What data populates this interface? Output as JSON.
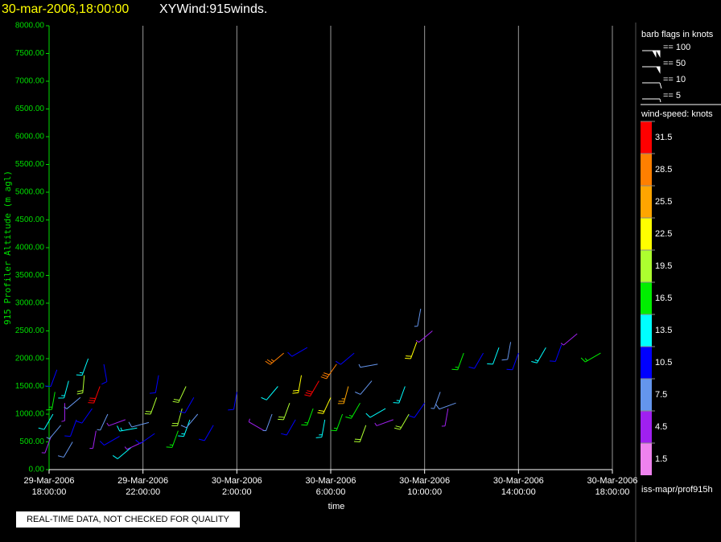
{
  "chart_data": {
    "type": "wind-barb",
    "title": "30-mar-2006,18:00:00",
    "subtitle": "XYWind:915winds.",
    "y_label": "915 Profiler Altitude (m agl)",
    "x_label": "time",
    "footer": "REAL-TIME DATA, NOT CHECKED FOR QUALITY",
    "source": "iss-mapr/prof915h",
    "xlim": [
      "2006-03-29T18:00",
      "2006-03-30T18:00"
    ],
    "xticks": [
      {
        "value": "2006-03-29T18:00",
        "label": [
          "29-Mar-2006",
          "18:00:00"
        ]
      },
      {
        "value": "2006-03-29T22:00",
        "label": [
          "29-Mar-2006",
          "22:00:00"
        ]
      },
      {
        "value": "2006-03-30T02:00",
        "label": [
          "30-Mar-2006",
          "2:00:00"
        ]
      },
      {
        "value": "2006-03-30T06:00",
        "label": [
          "30-Mar-2006",
          "6:00:00"
        ]
      },
      {
        "value": "2006-03-30T10:00",
        "label": [
          "30-Mar-2006",
          "10:00:00"
        ]
      },
      {
        "value": "2006-03-30T14:00",
        "label": [
          "30-Mar-2006",
          "14:00:00"
        ]
      },
      {
        "value": "2006-03-30T18:00",
        "label": [
          "30-Mar-2006",
          "18:00:00"
        ]
      }
    ],
    "ylim": [
      0,
      8000
    ],
    "yticks": [
      {
        "value": 0,
        "label": "0.00"
      },
      {
        "value": 500,
        "label": "500.00"
      },
      {
        "value": 1000,
        "label": "1000.00"
      },
      {
        "value": 1500,
        "label": "1500.00"
      },
      {
        "value": 2000,
        "label": "2000.00"
      },
      {
        "value": 2500,
        "label": "2500.00"
      },
      {
        "value": 3000,
        "label": "3000.00"
      },
      {
        "value": 3500,
        "label": "3500.00"
      },
      {
        "value": 4000,
        "label": "4000.00"
      },
      {
        "value": 4500,
        "label": "4500.00"
      },
      {
        "value": 5000,
        "label": "5000.00"
      },
      {
        "value": 5500,
        "label": "5500.00"
      },
      {
        "value": 6000,
        "label": "6000.00"
      },
      {
        "value": 6500,
        "label": "6500.00"
      },
      {
        "value": 7000,
        "label": "7000.00"
      },
      {
        "value": 7500,
        "label": "7500.00"
      },
      {
        "value": 8000,
        "label": "8000.00"
      }
    ],
    "grid": true,
    "flag_legend": {
      "title": "barb flags in knots",
      "items": [
        {
          "value": 100,
          "label": "== 100"
        },
        {
          "value": 50,
          "label": "== 50"
        },
        {
          "value": 10,
          "label": "== 10"
        },
        {
          "value": 5,
          "label": "== 5"
        }
      ]
    },
    "colorbar": {
      "title": "wind-speed: knots",
      "levels": [
        31.5,
        28.5,
        25.5,
        22.5,
        19.5,
        16.5,
        13.5,
        10.5,
        7.5,
        4.5,
        1.5
      ],
      "colors": [
        "#ff0000",
        "#ff7f00",
        "#ffa500",
        "#ffff00",
        "#adff2f",
        "#00ee00",
        "#00ffff",
        "#0000ff",
        "#6495ed",
        "#a020f0",
        "#ee82ee"
      ]
    },
    "barbs": {
      "x": [
        "2006-03-29T18:05",
        "2006-03-29T18:10",
        "2006-03-29T18:15",
        "2006-03-29T18:20",
        "2006-03-29T18:30",
        "2006-03-29T18:40",
        "2006-03-29T18:50",
        "2006-03-29T19:00",
        "2006-03-29T19:10",
        "2006-03-29T19:20",
        "2006-03-29T19:30",
        "2006-03-29T19:40",
        "2006-03-29T19:50",
        "2006-03-29T20:00",
        "2006-03-29T20:10",
        "2006-03-29T20:20",
        "2006-03-29T20:30",
        "2006-03-29T21:00",
        "2006-03-29T21:15",
        "2006-03-29T21:30",
        "2006-03-29T21:45",
        "2006-03-29T22:00",
        "2006-03-29T22:15",
        "2006-03-29T22:30",
        "2006-03-29T22:35",
        "2006-03-29T22:40",
        "2006-03-29T23:30",
        "2006-03-29T23:40",
        "2006-03-29T23:50",
        "2006-03-30T00:00",
        "2006-03-30T00:10",
        "2006-03-30T00:20",
        "2006-03-30T01:00",
        "2006-03-30T02:00",
        "2006-03-30T03:10",
        "2006-03-30T03:30",
        "2006-03-30T03:45",
        "2006-03-30T04:00",
        "2006-03-30T04:15",
        "2006-03-30T04:30",
        "2006-03-30T04:45",
        "2006-03-30T05:00",
        "2006-03-30T05:15",
        "2006-03-30T05:30",
        "2006-03-30T05:45",
        "2006-03-30T06:00",
        "2006-03-30T06:15",
        "2006-03-30T06:30",
        "2006-03-30T06:45",
        "2006-03-30T07:00",
        "2006-03-30T07:15",
        "2006-03-30T07:30",
        "2006-03-30T07:45",
        "2006-03-30T08:00",
        "2006-03-30T08:20",
        "2006-03-30T08:40",
        "2006-03-30T09:10",
        "2006-03-30T09:20",
        "2006-03-30T09:40",
        "2006-03-30T09:50",
        "2006-03-30T10:00",
        "2006-03-30T10:20",
        "2006-03-30T10:40",
        "2006-03-30T11:00",
        "2006-03-30T11:20",
        "2006-03-30T11:40",
        "2006-03-30T12:30",
        "2006-03-30T13:10",
        "2006-03-30T13:40",
        "2006-03-30T14:00",
        "2006-03-30T15:10",
        "2006-03-30T15:50",
        "2006-03-30T16:30",
        "2006-03-30T17:30"
      ],
      "y": [
        600,
        1000,
        1400,
        1800,
        800,
        1200,
        1600,
        500,
        900,
        1300,
        1700,
        2000,
        1100,
        700,
        1500,
        1900,
        1000,
        600,
        900,
        400,
        750,
        500,
        850,
        650,
        1300,
        1700,
        700,
        1100,
        1500,
        900,
        1300,
        1000,
        800,
        1400,
        700,
        1000,
        1500,
        2100,
        1200,
        900,
        1700,
        2200,
        1100,
        1600,
        900,
        1300,
        1900,
        1000,
        1500,
        2100,
        1200,
        800,
        1600,
        1900,
        1100,
        900,
        1500,
        1000,
        2300,
        2900,
        1200,
        2500,
        1400,
        1100,
        1200,
        2100,
        2100,
        2200,
        2300,
        2100,
        2200,
        2250,
        2450,
        2100
      ],
      "speed": [
        5,
        12,
        16,
        9,
        7,
        4,
        14,
        8,
        11,
        6,
        18,
        13,
        10,
        3,
        31,
        10,
        7,
        9,
        5,
        12,
        14,
        4,
        8,
        11,
        19,
        10,
        16,
        20,
        18,
        13,
        11,
        8,
        9,
        10,
        5,
        7,
        12,
        27,
        19,
        10,
        22,
        9,
        16,
        31,
        13,
        21,
        28,
        17,
        24,
        11,
        15,
        19,
        8,
        6,
        12,
        5,
        14,
        20,
        22,
        7,
        9,
        4,
        6,
        4,
        8,
        15,
        9,
        12,
        8,
        10,
        14,
        9,
        5,
        17
      ],
      "direction": [
        200,
        210,
        190,
        200,
        220,
        180,
        195,
        210,
        200,
        230,
        185,
        200,
        215,
        190,
        200,
        170,
        205,
        240,
        250,
        230,
        260,
        245,
        255,
        235,
        200,
        190,
        200,
        195,
        205,
        200,
        210,
        220,
        210,
        190,
        300,
        200,
        220,
        230,
        200,
        210,
        190,
        240,
        200,
        210,
        190,
        205,
        215,
        200,
        195,
        230,
        210,
        200,
        220,
        260,
        240,
        250,
        200,
        210,
        200,
        190,
        215,
        230,
        200,
        190,
        250,
        200,
        210,
        200,
        190,
        200,
        210,
        200,
        230,
        240
      ]
    }
  }
}
